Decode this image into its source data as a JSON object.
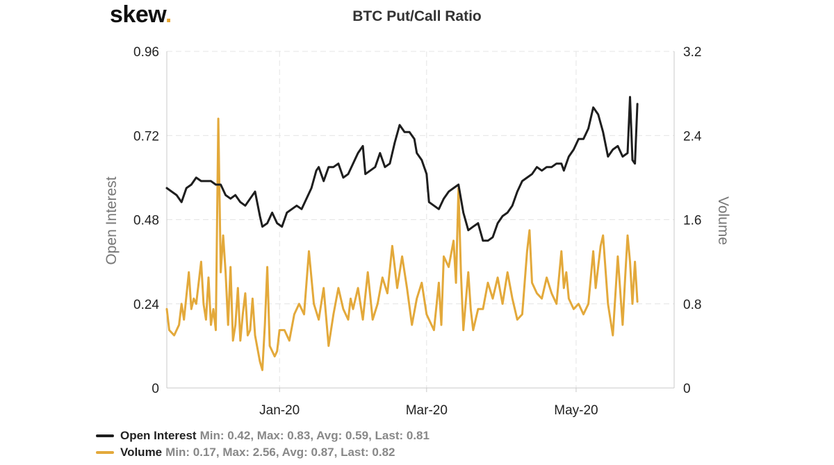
{
  "logo": {
    "text": "skew",
    "dot": "."
  },
  "title": "BTC Put/Call Ratio",
  "colors": {
    "open_interest": "#1e1e1e",
    "volume": "#e3a93b",
    "grid": "#e4e4e4",
    "axis": "#c8c8c8",
    "axis_label": "#777777"
  },
  "legend": [
    {
      "name": "Open Interest",
      "stats": "Min: 0.42, Max: 0.83, Avg: 0.59, Last: 0.81"
    },
    {
      "name": "Volume",
      "stats": "Min: 0.17, Max: 2.56, Avg: 0.87, Last: 0.82"
    }
  ],
  "chart_data": {
    "type": "line",
    "title": "BTC Put/Call Ratio",
    "xlabel": "",
    "ylabel_left": "Open Interest",
    "ylabel_right": "Volume",
    "x_range": [
      "2019-11-16",
      "2020-06-10"
    ],
    "x_ticks": [
      {
        "label": "Jan-20",
        "date": "2020-01-01"
      },
      {
        "label": "Mar-20",
        "date": "2020-03-01"
      },
      {
        "label": "May-20",
        "date": "2020-05-01"
      }
    ],
    "ylim_left": [
      0,
      0.96
    ],
    "yticks_left": [
      "0",
      "0.24",
      "0.48",
      "0.72",
      "0.96"
    ],
    "ylim_right": [
      0,
      3.2
    ],
    "yticks_right": [
      "0",
      "0.8",
      "1.6",
      "2.4",
      "3.2"
    ],
    "grid": true,
    "legend_position": "bottom-left",
    "series": [
      {
        "name": "Open Interest",
        "axis": "left",
        "points": [
          [
            "2019-11-16",
            0.57
          ],
          [
            "2019-11-18",
            0.56
          ],
          [
            "2019-11-20",
            0.55
          ],
          [
            "2019-11-22",
            0.53
          ],
          [
            "2019-11-24",
            0.57
          ],
          [
            "2019-11-26",
            0.58
          ],
          [
            "2019-11-28",
            0.6
          ],
          [
            "2019-11-30",
            0.59
          ],
          [
            "2019-12-02",
            0.59
          ],
          [
            "2019-12-04",
            0.59
          ],
          [
            "2019-12-06",
            0.58
          ],
          [
            "2019-12-08",
            0.58
          ],
          [
            "2019-12-10",
            0.55
          ],
          [
            "2019-12-12",
            0.54
          ],
          [
            "2019-12-14",
            0.55
          ],
          [
            "2019-12-16",
            0.53
          ],
          [
            "2019-12-18",
            0.52
          ],
          [
            "2019-12-20",
            0.54
          ],
          [
            "2019-12-22",
            0.56
          ],
          [
            "2019-12-24",
            0.49
          ],
          [
            "2019-12-25",
            0.46
          ],
          [
            "2019-12-27",
            0.47
          ],
          [
            "2019-12-29",
            0.5
          ],
          [
            "2019-12-31",
            0.47
          ],
          [
            "2020-01-02",
            0.46
          ],
          [
            "2020-01-04",
            0.5
          ],
          [
            "2020-01-06",
            0.51
          ],
          [
            "2020-01-08",
            0.52
          ],
          [
            "2020-01-10",
            0.51
          ],
          [
            "2020-01-12",
            0.54
          ],
          [
            "2020-01-14",
            0.57
          ],
          [
            "2020-01-16",
            0.62
          ],
          [
            "2020-01-17",
            0.63
          ],
          [
            "2020-01-19",
            0.59
          ],
          [
            "2020-01-21",
            0.63
          ],
          [
            "2020-01-23",
            0.63
          ],
          [
            "2020-01-25",
            0.64
          ],
          [
            "2020-01-27",
            0.6
          ],
          [
            "2020-01-29",
            0.61
          ],
          [
            "2020-01-31",
            0.64
          ],
          [
            "2020-02-02",
            0.67
          ],
          [
            "2020-02-04",
            0.69
          ],
          [
            "2020-02-05",
            0.61
          ],
          [
            "2020-02-07",
            0.62
          ],
          [
            "2020-02-09",
            0.63
          ],
          [
            "2020-02-11",
            0.67
          ],
          [
            "2020-02-13",
            0.63
          ],
          [
            "2020-02-15",
            0.64
          ],
          [
            "2020-02-17",
            0.7
          ],
          [
            "2020-02-19",
            0.75
          ],
          [
            "2020-02-21",
            0.73
          ],
          [
            "2020-02-23",
            0.73
          ],
          [
            "2020-02-25",
            0.71
          ],
          [
            "2020-02-26",
            0.67
          ],
          [
            "2020-02-28",
            0.65
          ],
          [
            "2020-03-01",
            0.61
          ],
          [
            "2020-03-02",
            0.53
          ],
          [
            "2020-03-04",
            0.52
          ],
          [
            "2020-03-06",
            0.51
          ],
          [
            "2020-03-08",
            0.54
          ],
          [
            "2020-03-10",
            0.56
          ],
          [
            "2020-03-12",
            0.57
          ],
          [
            "2020-03-14",
            0.58
          ],
          [
            "2020-03-16",
            0.5
          ],
          [
            "2020-03-18",
            0.45
          ],
          [
            "2020-03-20",
            0.46
          ],
          [
            "2020-03-22",
            0.47
          ],
          [
            "2020-03-24",
            0.42
          ],
          [
            "2020-03-26",
            0.42
          ],
          [
            "2020-03-28",
            0.43
          ],
          [
            "2020-03-30",
            0.47
          ],
          [
            "2020-04-01",
            0.49
          ],
          [
            "2020-04-03",
            0.5
          ],
          [
            "2020-04-05",
            0.52
          ],
          [
            "2020-04-07",
            0.56
          ],
          [
            "2020-04-09",
            0.59
          ],
          [
            "2020-04-11",
            0.6
          ],
          [
            "2020-04-13",
            0.61
          ],
          [
            "2020-04-15",
            0.63
          ],
          [
            "2020-04-17",
            0.62
          ],
          [
            "2020-04-19",
            0.63
          ],
          [
            "2020-04-21",
            0.63
          ],
          [
            "2020-04-23",
            0.64
          ],
          [
            "2020-04-25",
            0.64
          ],
          [
            "2020-04-26",
            0.62
          ],
          [
            "2020-04-28",
            0.66
          ],
          [
            "2020-04-30",
            0.68
          ],
          [
            "2020-05-02",
            0.71
          ],
          [
            "2020-05-04",
            0.71
          ],
          [
            "2020-05-06",
            0.74
          ],
          [
            "2020-05-08",
            0.8
          ],
          [
            "2020-05-10",
            0.78
          ],
          [
            "2020-05-12",
            0.73
          ],
          [
            "2020-05-14",
            0.66
          ],
          [
            "2020-05-16",
            0.68
          ],
          [
            "2020-05-18",
            0.69
          ],
          [
            "2020-05-20",
            0.66
          ],
          [
            "2020-05-22",
            0.67
          ],
          [
            "2020-05-23",
            0.83
          ],
          [
            "2020-05-24",
            0.65
          ],
          [
            "2020-05-25",
            0.64
          ],
          [
            "2020-05-26",
            0.81
          ]
        ]
      },
      {
        "name": "Volume",
        "axis": "right",
        "points": [
          [
            "2019-11-16",
            0.75
          ],
          [
            "2019-11-17",
            0.55
          ],
          [
            "2019-11-19",
            0.5
          ],
          [
            "2019-11-21",
            0.6
          ],
          [
            "2019-11-22",
            0.8
          ],
          [
            "2019-11-23",
            0.65
          ],
          [
            "2019-11-25",
            1.1
          ],
          [
            "2019-11-26",
            0.75
          ],
          [
            "2019-11-27",
            0.85
          ],
          [
            "2019-11-28",
            0.8
          ],
          [
            "2019-11-30",
            1.2
          ],
          [
            "2019-12-01",
            0.8
          ],
          [
            "2019-12-02",
            0.65
          ],
          [
            "2019-12-03",
            1.05
          ],
          [
            "2019-12-04",
            0.6
          ],
          [
            "2019-12-05",
            0.75
          ],
          [
            "2019-12-06",
            0.55
          ],
          [
            "2019-12-07",
            2.56
          ],
          [
            "2019-12-08",
            1.1
          ],
          [
            "2019-12-09",
            1.45
          ],
          [
            "2019-12-10",
            1.1
          ],
          [
            "2019-12-11",
            0.6
          ],
          [
            "2019-12-12",
            1.15
          ],
          [
            "2019-12-13",
            0.45
          ],
          [
            "2019-12-14",
            0.6
          ],
          [
            "2019-12-15",
            0.95
          ],
          [
            "2019-12-16",
            0.45
          ],
          [
            "2019-12-17",
            0.7
          ],
          [
            "2019-12-18",
            0.9
          ],
          [
            "2019-12-19",
            0.5
          ],
          [
            "2019-12-20",
            0.55
          ],
          [
            "2019-12-21",
            0.85
          ],
          [
            "2019-12-22",
            0.5
          ],
          [
            "2019-12-24",
            0.25
          ],
          [
            "2019-12-25",
            0.17
          ],
          [
            "2019-12-26",
            0.6
          ],
          [
            "2019-12-27",
            1.15
          ],
          [
            "2019-12-28",
            0.4
          ],
          [
            "2019-12-30",
            0.3
          ],
          [
            "2019-12-31",
            0.35
          ],
          [
            "2020-01-01",
            0.55
          ],
          [
            "2020-01-03",
            0.55
          ],
          [
            "2020-01-05",
            0.45
          ],
          [
            "2020-01-07",
            0.7
          ],
          [
            "2020-01-09",
            0.8
          ],
          [
            "2020-01-11",
            0.7
          ],
          [
            "2020-01-13",
            1.3
          ],
          [
            "2020-01-15",
            0.8
          ],
          [
            "2020-01-17",
            0.65
          ],
          [
            "2020-01-19",
            0.95
          ],
          [
            "2020-01-21",
            0.4
          ],
          [
            "2020-01-23",
            0.7
          ],
          [
            "2020-01-25",
            0.95
          ],
          [
            "2020-01-27",
            0.75
          ],
          [
            "2020-01-29",
            0.65
          ],
          [
            "2020-01-30",
            0.85
          ],
          [
            "2020-01-31",
            0.75
          ],
          [
            "2020-02-02",
            0.95
          ],
          [
            "2020-02-04",
            0.65
          ],
          [
            "2020-02-06",
            1.1
          ],
          [
            "2020-02-08",
            0.65
          ],
          [
            "2020-02-10",
            0.8
          ],
          [
            "2020-02-12",
            1.05
          ],
          [
            "2020-02-14",
            0.9
          ],
          [
            "2020-02-16",
            1.35
          ],
          [
            "2020-02-17",
            1.15
          ],
          [
            "2020-02-18",
            0.95
          ],
          [
            "2020-02-20",
            1.25
          ],
          [
            "2020-02-22",
            0.95
          ],
          [
            "2020-02-24",
            0.6
          ],
          [
            "2020-02-26",
            0.85
          ],
          [
            "2020-02-28",
            1.0
          ],
          [
            "2020-03-01",
            0.7
          ],
          [
            "2020-03-02",
            0.65
          ],
          [
            "2020-03-04",
            0.55
          ],
          [
            "2020-03-06",
            1.0
          ],
          [
            "2020-03-07",
            0.6
          ],
          [
            "2020-03-08",
            1.25
          ],
          [
            "2020-03-10",
            1.15
          ],
          [
            "2020-03-12",
            1.4
          ],
          [
            "2020-03-13",
            1.0
          ],
          [
            "2020-03-14",
            1.9
          ],
          [
            "2020-03-15",
            1.1
          ],
          [
            "2020-03-16",
            0.55
          ],
          [
            "2020-03-18",
            1.1
          ],
          [
            "2020-03-19",
            0.75
          ],
          [
            "2020-03-20",
            0.55
          ],
          [
            "2020-03-22",
            0.75
          ],
          [
            "2020-03-24",
            0.75
          ],
          [
            "2020-03-26",
            1.0
          ],
          [
            "2020-03-28",
            0.85
          ],
          [
            "2020-03-30",
            1.05
          ],
          [
            "2020-04-01",
            0.8
          ],
          [
            "2020-04-03",
            1.1
          ],
          [
            "2020-04-05",
            0.85
          ],
          [
            "2020-04-07",
            0.65
          ],
          [
            "2020-04-09",
            0.7
          ],
          [
            "2020-04-11",
            1.3
          ],
          [
            "2020-04-12",
            1.5
          ],
          [
            "2020-04-13",
            1.0
          ],
          [
            "2020-04-15",
            0.9
          ],
          [
            "2020-04-17",
            0.85
          ],
          [
            "2020-04-19",
            1.05
          ],
          [
            "2020-04-21",
            0.9
          ],
          [
            "2020-04-23",
            0.8
          ],
          [
            "2020-04-25",
            1.3
          ],
          [
            "2020-04-26",
            0.95
          ],
          [
            "2020-04-27",
            1.1
          ],
          [
            "2020-04-28",
            0.85
          ],
          [
            "2020-04-30",
            0.75
          ],
          [
            "2020-05-02",
            0.8
          ],
          [
            "2020-05-04",
            0.7
          ],
          [
            "2020-05-06",
            0.8
          ],
          [
            "2020-05-08",
            1.3
          ],
          [
            "2020-05-09",
            0.95
          ],
          [
            "2020-05-11",
            1.35
          ],
          [
            "2020-05-12",
            1.45
          ],
          [
            "2020-05-14",
            0.8
          ],
          [
            "2020-05-16",
            0.5
          ],
          [
            "2020-05-18",
            1.25
          ],
          [
            "2020-05-20",
            0.6
          ],
          [
            "2020-05-21",
            1.05
          ],
          [
            "2020-05-22",
            1.45
          ],
          [
            "2020-05-23",
            1.2
          ],
          [
            "2020-05-24",
            0.8
          ],
          [
            "2020-05-25",
            1.2
          ],
          [
            "2020-05-26",
            0.82
          ]
        ]
      }
    ]
  }
}
